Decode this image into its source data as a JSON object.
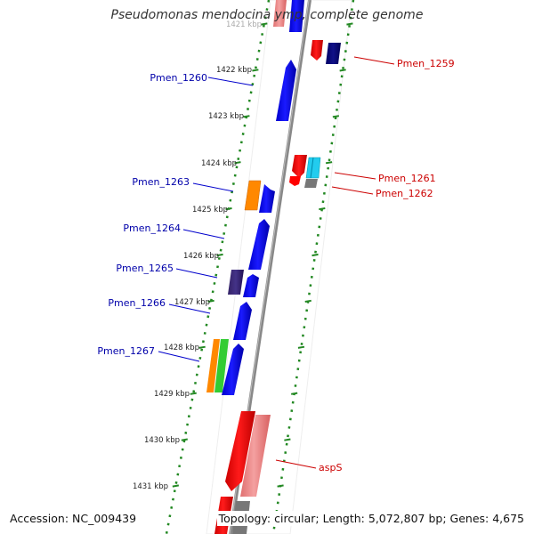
{
  "title": "Pseudomonas mendocina ymp, complete genome",
  "footer": {
    "accession": "Accession: NC_009439",
    "topology": "Topology: circular; Length: 5,072,807 bp; Genes: 4,675"
  },
  "ticks": [
    {
      "label": "1421 kbp",
      "kbp": 1421
    },
    {
      "label": "1422 kbp",
      "kbp": 1422
    },
    {
      "label": "1423 kbp",
      "kbp": 1423
    },
    {
      "label": "1424 kbp",
      "kbp": 1424
    },
    {
      "label": "1425 kbp",
      "kbp": 1425
    },
    {
      "label": "1426 kbp",
      "kbp": 1426
    },
    {
      "label": "1427 kbp",
      "kbp": 1427
    },
    {
      "label": "1428 kbp",
      "kbp": 1428
    },
    {
      "label": "1429 kbp",
      "kbp": 1429
    },
    {
      "label": "1430 kbp",
      "kbp": 1430
    },
    {
      "label": "1431 kbp",
      "kbp": 1431
    }
  ],
  "gene_labels_left": [
    "Pmen_1260",
    "Pmen_1263",
    "Pmen_1264",
    "Pmen_1265",
    "Pmen_1266",
    "Pmen_1267"
  ],
  "gene_labels_right": [
    "Pmen_1259",
    "Pmen_1261",
    "Pmen_1262",
    "aspS"
  ],
  "colors": {
    "forward_cds": "#0000ff",
    "reverse_cds": "#ff0000",
    "left_label": "#0000aa",
    "right_label": "#cc0000",
    "backbone": "#888888",
    "dots": "#228822"
  }
}
